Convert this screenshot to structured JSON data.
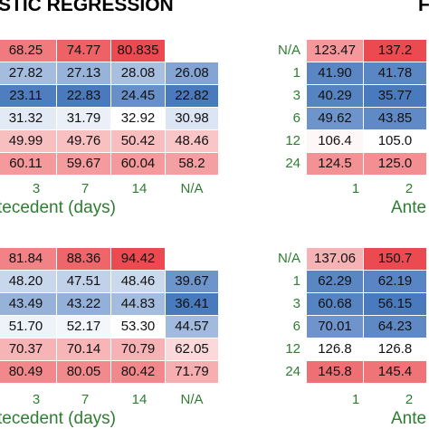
{
  "chart_data": [
    {
      "type": "heatmap",
      "title": "STIC REGRESSION",
      "xlabel": "tecedent (days)",
      "x": [
        "3",
        "7",
        "14",
        "N/A"
      ],
      "values": [
        [
          "68.25",
          "74.77",
          "80.835",
          ""
        ],
        [
          "27.82",
          "27.13",
          "28.08",
          "26.08"
        ],
        [
          "23.11",
          "22.83",
          "24.45",
          "22.82"
        ],
        [
          "31.32",
          "31.79",
          "32.92",
          "30.98"
        ],
        [
          "49.99",
          "49.76",
          "50.42",
          "48.46"
        ],
        [
          "60.11",
          "59.67",
          "60.04",
          "58.2"
        ]
      ]
    },
    {
      "type": "heatmap",
      "title": "F",
      "xlabel": "Ante",
      "x": [
        "1",
        "2"
      ],
      "y": [
        "N/A",
        "1",
        "3",
        "6",
        "12",
        "24"
      ],
      "values": [
        [
          "123.47",
          "137.2"
        ],
        [
          "41.90",
          "41.78"
        ],
        [
          "40.29",
          "35.77"
        ],
        [
          "49.62",
          "43.85"
        ],
        [
          "106.4",
          "105.0"
        ],
        [
          "124.5",
          "125.0"
        ]
      ]
    },
    {
      "type": "heatmap",
      "xlabel": "tecedent (days)",
      "x": [
        "3",
        "7",
        "14",
        "N/A"
      ],
      "values": [
        [
          "81.84",
          "88.36",
          "94.42",
          ""
        ],
        [
          "48.20",
          "47.51",
          "48.46",
          "39.67"
        ],
        [
          "43.49",
          "43.22",
          "44.83",
          "36.41"
        ],
        [
          "51.70",
          "52.17",
          "53.30",
          "44.57"
        ],
        [
          "70.37",
          "70.14",
          "70.79",
          "62.05"
        ],
        [
          "80.49",
          "80.05",
          "80.42",
          "71.79"
        ]
      ]
    },
    {
      "type": "heatmap",
      "xlabel": "Ante",
      "x": [
        "1",
        "2"
      ],
      "y": [
        "N/A",
        "1",
        "3",
        "6",
        "12",
        "24"
      ],
      "values": [
        [
          "137.06",
          "150.7"
        ],
        [
          "62.29",
          "62.19"
        ],
        [
          "60.68",
          "56.15"
        ],
        [
          "70.01",
          "64.23"
        ],
        [
          "126.8",
          "126.8"
        ],
        [
          "145.8",
          "145.4"
        ]
      ]
    }
  ]
}
